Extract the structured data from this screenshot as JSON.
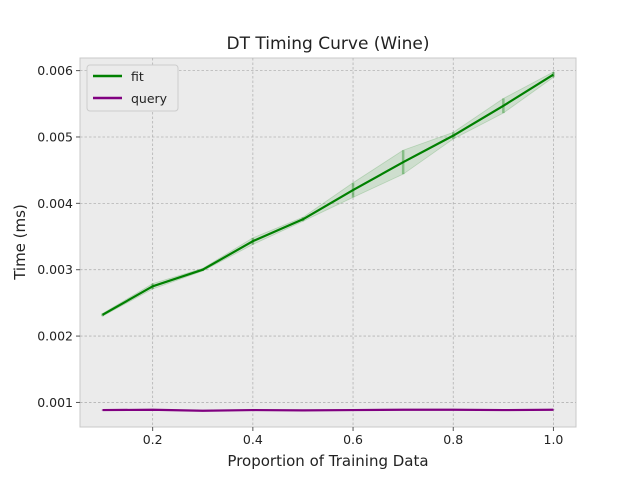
{
  "chart_data": {
    "type": "line",
    "title": "DT Timing Curve (Wine)",
    "xlabel": "Proportion of Training Data",
    "ylabel": "Time (ms)",
    "xlim": [
      0.055,
      1.045
    ],
    "ylim": [
      0.00063,
      0.00619
    ],
    "xticks": [
      0.2,
      0.4,
      0.6,
      0.8,
      1.0
    ],
    "xtick_labels": [
      "0.2",
      "0.4",
      "0.6",
      "0.8",
      "1.0"
    ],
    "yticks": [
      0.001,
      0.002,
      0.003,
      0.004,
      0.005,
      0.006
    ],
    "ytick_labels": [
      "0.001",
      "0.002",
      "0.003",
      "0.004",
      "0.005",
      "0.006"
    ],
    "grid": true,
    "legend_position": "top-left",
    "x": [
      0.1,
      0.2,
      0.3,
      0.4,
      0.5,
      0.6,
      0.7,
      0.8,
      0.9,
      1.0
    ],
    "series": [
      {
        "name": "fit",
        "color": "#008000",
        "values": [
          0.00232,
          0.00275,
          0.003,
          0.00343,
          0.00376,
          0.0042,
          0.00462,
          0.00502,
          0.00547,
          0.00594
        ],
        "error": [
          2e-05,
          4e-05,
          2e-05,
          5e-05,
          3e-05,
          0.00011,
          0.00018,
          5e-05,
          0.00011,
          4e-05
        ]
      },
      {
        "name": "query",
        "color": "#800080",
        "values": [
          0.000885,
          0.00089,
          0.000875,
          0.000885,
          0.00088,
          0.000885,
          0.00089,
          0.00089,
          0.000885,
          0.00089
        ],
        "error": [
          5e-06,
          5e-06,
          5e-06,
          5e-06,
          5e-06,
          5e-06,
          5e-06,
          5e-06,
          5e-06,
          5e-06
        ]
      }
    ]
  }
}
